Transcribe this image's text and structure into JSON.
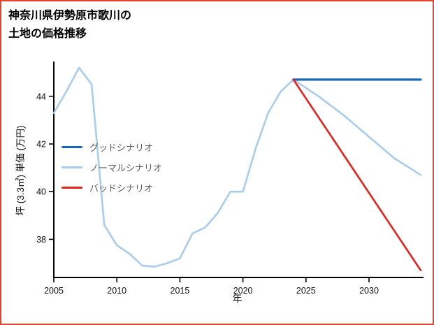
{
  "chart_data": {
    "type": "line",
    "title_lines": [
      "神奈川県伊勢原市歌川の",
      "土地の価格推移"
    ],
    "xlabel": "年",
    "ylabel": "坪 (3.3㎡) 単価 (万円)",
    "xlim": [
      2005,
      2034.1
    ],
    "ylim": [
      36.4,
      45.4
    ],
    "xticks": [
      2005,
      2010,
      2015,
      2020,
      2025,
      2030
    ],
    "yticks": [
      38,
      40,
      42,
      44
    ],
    "grid": false,
    "legend_position": "center-left",
    "frame_color": "#e8432e",
    "axis_color": "#000000",
    "series": [
      {
        "id": "good",
        "name": "グッドシナリオ",
        "color": "#1868b7",
        "width": 3.2,
        "z": 2,
        "x": [
          2024,
          2034.1
        ],
        "y": [
          44.7,
          44.7
        ]
      },
      {
        "id": "normal",
        "name": "ノーマルシナリオ",
        "color": "#a8ccee",
        "width": 2.6,
        "z": 1,
        "x": [
          2005,
          2006,
          2007,
          2008,
          2009,
          2010,
          2011,
          2012,
          2013,
          2014,
          2015,
          2016,
          2017,
          2018,
          2019,
          2020,
          2021,
          2022,
          2023,
          2024,
          2026,
          2028,
          2030,
          2032,
          2034.1
        ],
        "y": [
          43.3,
          44.2,
          45.2,
          44.5,
          38.6,
          37.75,
          37.4,
          36.9,
          36.85,
          37.0,
          37.2,
          38.25,
          38.5,
          39.1,
          40.0,
          40.0,
          41.8,
          43.3,
          44.2,
          44.7,
          44.0,
          43.2,
          42.3,
          41.4,
          40.7
        ]
      },
      {
        "id": "bad",
        "name": "バッドシナリオ",
        "color": "#e8211d",
        "width": 2.6,
        "z": 3,
        "x": [
          2024,
          2034.1
        ],
        "y": [
          44.7,
          36.7
        ]
      }
    ]
  }
}
